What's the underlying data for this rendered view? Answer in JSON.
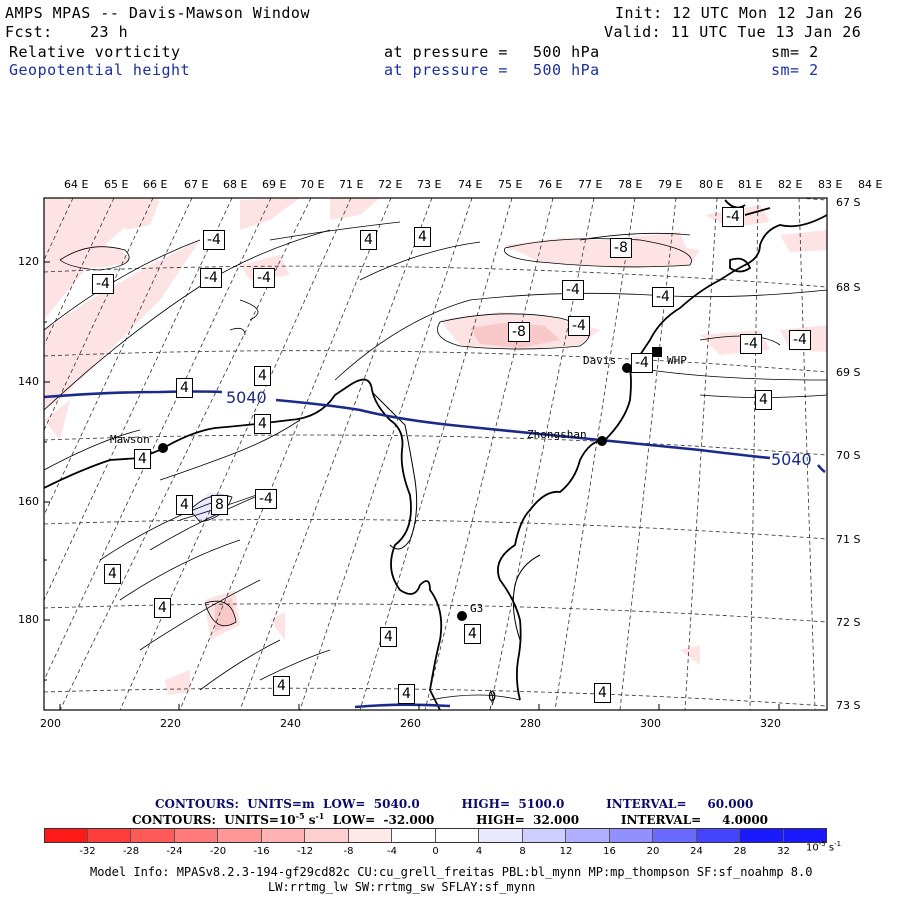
{
  "header": {
    "title": "AMPS MPAS -- Davis-Mawson Window",
    "init": "Init: 12 UTC Mon 12 Jan 26",
    "fcst_label": "Fcst:",
    "fcst_value": "23 h",
    "valid": "Valid: 11 UTC Tue 13 Jan 26",
    "field1": {
      "name": "Relative vorticity",
      "level": "at pressure =",
      "value": "500 hPa",
      "sm": "sm= 2"
    },
    "field2": {
      "name": "Geopotential height",
      "level": "at pressure =",
      "value": "500 hPa",
      "sm": "sm= 2"
    }
  },
  "map": {
    "top_lon_labels": [
      "64 E",
      "65 E",
      "66 E",
      "67 E",
      "68 E",
      "69 E",
      "70 E",
      "71 E",
      "72 E",
      "73 E",
      "74 E",
      "75 E",
      "76 E",
      "77 E",
      "78 E",
      "79 E",
      "80 E",
      "81 E",
      "82 E",
      "83 E",
      "84 E"
    ],
    "right_lat_labels": [
      "67 S",
      "68 S",
      "69 S",
      "70 S",
      "71 S",
      "72 S",
      "73 S"
    ],
    "left_ticks": [
      "120",
      "140",
      "160",
      "180"
    ],
    "bottom_ticks": [
      "200",
      "220",
      "240",
      "260",
      "280",
      "300",
      "320"
    ],
    "stations": [
      {
        "name": "Davis"
      },
      {
        "name": "WHP"
      },
      {
        "name": "Zhongshan"
      },
      {
        "name": "Mawson"
      },
      {
        "name": "G3"
      }
    ],
    "height_contour_label": "5040",
    "vort_labels": {
      "m4": "-4",
      "m8": "-8",
      "p4": "4",
      "p8": "8",
      "zero": "0"
    }
  },
  "legend": {
    "contours1": "CONTOURS:  UNITS=m  LOW=  5040.0          HIGH=  5100.0          INTERVAL=     60.000",
    "contours2": "CONTOURS:  UNITS=10",
    "contours2_exp": "-5",
    "contours2_rest": " s",
    "contours2_exp2": "-1",
    "contours2_tail": "  LOW=  -32.000          HIGH=  32.000          INTERVAL=     4.0000",
    "colorbar_ticks": [
      "-32",
      "-28",
      "-24",
      "-20",
      "-16",
      "-12",
      "-8",
      "-4",
      "0",
      "4",
      "8",
      "12",
      "16",
      "20",
      "24",
      "28",
      "32"
    ],
    "colorbar_units": "10",
    "colorbar_units_exp": "-5",
    "colorbar_units_s": "s",
    "colorbar_units_exp2": "-1",
    "colors": [
      "#ff1a1a",
      "#ff3c3c",
      "#ff5a5a",
      "#ff7a7a",
      "#ff9797",
      "#ffb3b3",
      "#ffcfcf",
      "#ffe8e8",
      "#ffffff",
      "#ffffff",
      "#e8e8ff",
      "#cfcfff",
      "#b0b0ff",
      "#9090ff",
      "#6a6aff",
      "#4444ff",
      "#1a1aff"
    ]
  },
  "footer": {
    "line1": "Model Info: MPASv8.2.3-194-gf29cd82c CU:cu_grell_freitas PBL:bl_mynn MP:mp_thompson SF:sf_noahmp 8.0",
    "line2": "LW:rrtmg_lw SW:rrtmg_sw SFLAY:sf_mynn"
  }
}
